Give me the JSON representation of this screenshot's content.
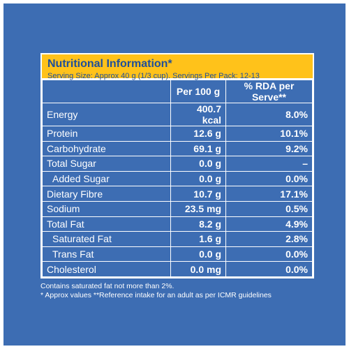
{
  "panel": {
    "title": "Nutritional Information*",
    "subtitle": "Serving Size: Approx 40 g (1/3 cup). Servings Per Pack: 12-13"
  },
  "columns": {
    "nutrient": "",
    "per100": "Per 100 g",
    "rda": "% RDA per Serve**"
  },
  "rows": [
    {
      "nutrient": "Energy",
      "per100": "400.7 kcal",
      "rda": "8.0%"
    },
    {
      "nutrient": "Protein",
      "per100": "12.6 g",
      "rda": "10.1%"
    },
    {
      "nutrient": "Carbohydrate",
      "per100": "69.1 g",
      "rda": "9.2%"
    },
    {
      "nutrient": "Total Sugar",
      "per100": "0.0 g",
      "rda": "–"
    },
    {
      "nutrient": "Added Sugar",
      "per100": "0.0 g",
      "rda": "0.0%"
    },
    {
      "nutrient": "Dietary Fibre",
      "per100": "10.7 g",
      "rda": "17.1%"
    },
    {
      "nutrient": "Sodium",
      "per100": "23.5 mg",
      "rda": "0.5%"
    },
    {
      "nutrient": "Total Fat",
      "per100": "8.2 g",
      "rda": "4.9%"
    },
    {
      "nutrient": "Saturated Fat",
      "per100": "1.6 g",
      "rda": "2.8%"
    },
    {
      "nutrient": "Trans Fat",
      "per100": "0.0 g",
      "rda": "0.0%"
    },
    {
      "nutrient": "Cholesterol",
      "per100": "0.0 mg",
      "rda": "0.0%"
    }
  ],
  "notes": {
    "line1": "Contains saturated fat not more than 2%.",
    "line2": "* Approx values **Reference intake for an adult as per ICMR guidelines"
  },
  "colors": {
    "background": "#3D6DB3",
    "header": "#FFC21A",
    "header_text": "#1F4F9A",
    "text": "#FFFFFF"
  }
}
